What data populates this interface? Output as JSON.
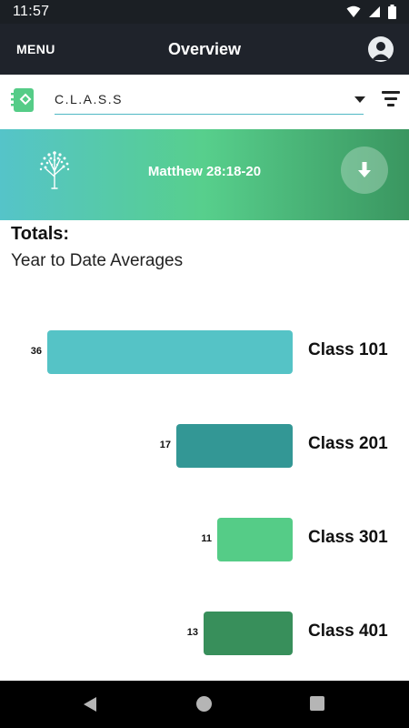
{
  "status_bar": {
    "time": "11:57",
    "icons": [
      "wifi-icon",
      "cell-signal-icon",
      "battery-icon"
    ]
  },
  "app_bar": {
    "menu_label": "MENU",
    "title": "Overview"
  },
  "selector": {
    "value": "C.L.A.S.S"
  },
  "banner": {
    "verse": "Matthew 28:18-20"
  },
  "totals": {
    "title": "Totals:",
    "subtitle": "Year to Date Averages"
  },
  "chart_data": {
    "type": "bar",
    "orientation": "horizontal",
    "categories": [
      "Class 101",
      "Class 201",
      "Class 301",
      "Class 401"
    ],
    "values": [
      36,
      17,
      11,
      13
    ],
    "colors": [
      "#55c3c6",
      "#339795",
      "#55cc87",
      "#388f5b"
    ]
  },
  "colors": {
    "app_bar": "#1f232b",
    "accent": "#4fb8c4",
    "banner_start": "#55c4c9",
    "banner_mid": "#57cf8c",
    "banner_end": "#3a9660"
  }
}
